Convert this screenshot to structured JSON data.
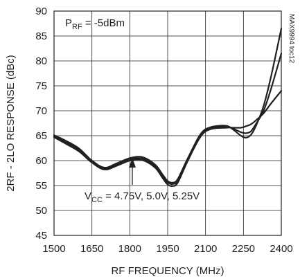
{
  "chart_data": {
    "type": "line",
    "title": "",
    "xlabel": "RF FREQUENCY (MHz)",
    "ylabel": "2RF - 2LO RESPONSE (dBc)",
    "xlim": [
      1500,
      2400
    ],
    "ylim": [
      45,
      90
    ],
    "xticks": [
      1500,
      1650,
      1800,
      1950,
      2100,
      2250,
      2400
    ],
    "yticks": [
      45,
      50,
      55,
      60,
      65,
      70,
      75,
      80,
      85,
      90
    ],
    "grid": true,
    "series": [
      {
        "name": "",
        "x": [
          1500,
          1550,
          1600,
          1650,
          1700,
          1750,
          1800,
          1850,
          1900,
          1930,
          1950,
          1970,
          1990,
          2030,
          2080,
          2120,
          2180,
          2210,
          2240,
          2260,
          2280,
          2300,
          2330,
          2360,
          2400
        ],
        "y": [
          64.7,
          63.3,
          61.8,
          59.6,
          58.2,
          59.0,
          60.0,
          60.1,
          58.6,
          56.5,
          55.2,
          54.9,
          55.6,
          60.0,
          64.8,
          66.3,
          66.6,
          66.6,
          66.6,
          66.9,
          67.3,
          68.1,
          69.5,
          71.5,
          74.0
        ]
      },
      {
        "name": "",
        "x": [
          1500,
          1550,
          1600,
          1650,
          1700,
          1750,
          1800,
          1850,
          1900,
          1930,
          1950,
          1970,
          1990,
          2030,
          2080,
          2120,
          2180,
          2210,
          2240,
          2260,
          2280,
          2300,
          2330,
          2360,
          2400
        ],
        "y": [
          64.9,
          63.6,
          62.1,
          59.8,
          58.4,
          59.3,
          60.3,
          60.4,
          58.9,
          56.9,
          55.6,
          55.3,
          56.0,
          60.3,
          65.1,
          66.5,
          66.8,
          66.4,
          65.7,
          65.5,
          65.9,
          67.4,
          70.0,
          74.5,
          81.5
        ]
      },
      {
        "name": "",
        "x": [
          1500,
          1550,
          1600,
          1650,
          1700,
          1750,
          1800,
          1850,
          1900,
          1930,
          1950,
          1970,
          1990,
          2030,
          2080,
          2120,
          2180,
          2210,
          2240,
          2260,
          2280,
          2300,
          2330,
          2360,
          2400
        ],
        "y": [
          65.1,
          63.9,
          62.4,
          60.0,
          58.6,
          59.5,
          60.5,
          60.7,
          59.2,
          57.2,
          55.9,
          55.6,
          56.3,
          60.5,
          65.3,
          66.7,
          67.0,
          66.2,
          65.0,
          64.6,
          65.2,
          67.0,
          71.0,
          77.0,
          86.5
        ]
      }
    ],
    "annotations": {
      "condition_label": "PRF = -5dBm",
      "supply_label": "VCC = 4.75V, 5.0V, 5.25V",
      "figure_code": "MAX9994 toc12",
      "arrow_x": 1810
    }
  },
  "labels": {
    "condition_main": "P",
    "condition_sub": "RF",
    "condition_rest": " = -5dBm",
    "supply_main": "V",
    "supply_sub": "CC",
    "supply_rest": " = 4.75V, 5.0V, 5.25V",
    "figure_code": "MAX9994 toc12"
  }
}
